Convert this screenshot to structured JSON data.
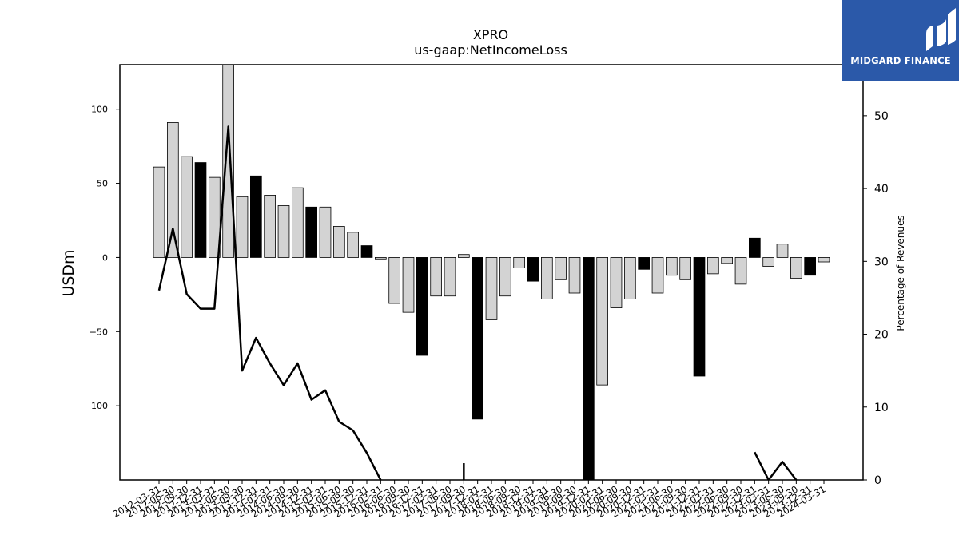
{
  "chart_data": {
    "type": "bar",
    "title": "XPRO",
    "subtitle": "us-gaap:NetIncomeLoss",
    "ylabel": "USDm",
    "y2label": "Percentage of Revenues",
    "ylim": [
      -150,
      130
    ],
    "y2lim": [
      0,
      57
    ],
    "yticks": [
      100,
      50,
      0,
      -50,
      -100
    ],
    "y2ticks": [
      0,
      10,
      20,
      30,
      40,
      50
    ],
    "categories": [
      "2012-03-31",
      "2012-06-30",
      "2012-09-30",
      "2012-12-31",
      "2013-03-31",
      "2013-06-30",
      "2013-09-30",
      "2013-12-31",
      "2014-03-31",
      "2014-06-30",
      "2014-09-30",
      "2014-12-31",
      "2015-03-31",
      "2015-06-30",
      "2015-09-30",
      "2015-12-31",
      "2016-03-31",
      "2016-06-30",
      "2016-09-30",
      "2016-12-31",
      "2017-03-31",
      "2017-06-30",
      "2017-09-30",
      "2017-12-31",
      "2018-03-31",
      "2018-06-30",
      "2018-09-30",
      "2018-12-31",
      "2019-03-31",
      "2019-06-30",
      "2019-09-30",
      "2019-12-31",
      "2020-03-31",
      "2020-06-30",
      "2020-09-30",
      "2020-12-31",
      "2021-03-31",
      "2021-06-30",
      "2021-09-30",
      "2021-12-31",
      "2022-03-31",
      "2022-06-30",
      "2022-09-30",
      "2022-12-31",
      "2023-03-31",
      "2023-06-30",
      "2023-09-30",
      "2023-12-31",
      "2024-03-31"
    ],
    "series": [
      {
        "values": [
          61,
          91,
          68,
          64,
          54,
          133,
          41,
          55,
          42,
          35,
          47,
          34,
          34,
          21,
          17,
          8,
          -1,
          -31,
          -37,
          -66,
          -26,
          -26,
          2,
          -109,
          -42,
          -26,
          -7,
          -16,
          -28,
          -15,
          -24,
          -152,
          -86,
          -34,
          -28,
          -8,
          -24,
          -12,
          -15,
          -80,
          -11,
          -4,
          -18,
          13,
          -6,
          9,
          -14,
          -12,
          -3
        ],
        "highlight": [
          false,
          false,
          false,
          true,
          false,
          false,
          false,
          true,
          false,
          false,
          false,
          true,
          false,
          false,
          false,
          true,
          false,
          false,
          false,
          true,
          false,
          false,
          false,
          true,
          false,
          false,
          false,
          true,
          false,
          false,
          false,
          true,
          false,
          false,
          false,
          true,
          false,
          false,
          false,
          true,
          false,
          false,
          false,
          true,
          false,
          false,
          false,
          true,
          false
        ]
      },
      {
        "axis": "right",
        "line": [
          26,
          34.5,
          25.5,
          23.5,
          23.5,
          48.5,
          15,
          19.5,
          16,
          13,
          16,
          11,
          12.3,
          8,
          6.8,
          3.7,
          0,
          null,
          null,
          null,
          null,
          null,
          null,
          null,
          null,
          null,
          null,
          null,
          null,
          null,
          null,
          null,
          null,
          null,
          null,
          null,
          null,
          null,
          null,
          null,
          null,
          null,
          null,
          3.8,
          0,
          2.5,
          0,
          null,
          null
        ],
        "spike": {
          "category": "2017-09-30",
          "value": 2.3
        }
      }
    ],
    "colors": {
      "bar": "#d3d3d3",
      "bar_highlight": "#000000",
      "bar_edge": "#000000",
      "line": "#000000"
    },
    "grid": false
  },
  "logo": {
    "text": "MIDGARD FINANCE",
    "bg": "#2b59a9",
    "icon": "midgard-m-logo"
  }
}
